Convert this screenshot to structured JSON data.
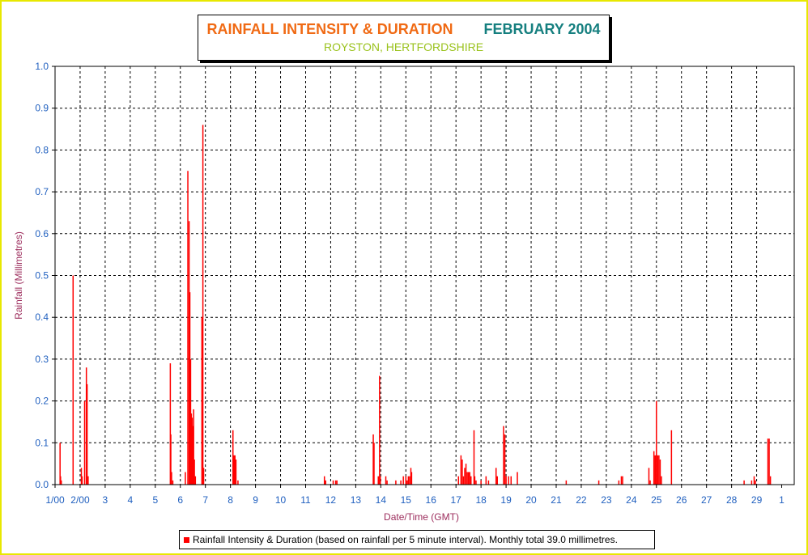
{
  "title": {
    "main": "RAINFALL INTENSITY & DURATION",
    "month": "FEBRUARY 2004",
    "subtitle": "ROYSTON, HERTFORDSHIRE"
  },
  "legend": {
    "label": "Rainfall Intensity & Duration (based on rainfall per 5 minute interval). Monthly total 39.0 millimetres."
  },
  "colors": {
    "series": "#ff0000",
    "tick_text": "#1f5fbf",
    "axis_title": "#9c2c5c",
    "title_orange": "#f06a14",
    "title_teal": "#157f7f",
    "subtitle": "#9ac21c",
    "border": "#e8e800"
  },
  "chart_data": {
    "type": "bar",
    "xlabel": "Date/Time (GMT)",
    "ylabel": "Rainfall (Millimetres)",
    "ylim": [
      0,
      1.0
    ],
    "xlim": [
      0,
      29.5
    ],
    "grid": "dashed",
    "y_ticks": [
      "0.0",
      "0.1",
      "0.2",
      "0.3",
      "0.4",
      "0.5",
      "0.6",
      "0.7",
      "0.8",
      "0.9",
      "1.0"
    ],
    "x_tick_labels": [
      "1/00",
      "2/00",
      "3",
      "4",
      "5",
      "6",
      "7",
      "8",
      "9",
      "10",
      "11",
      "12",
      "13",
      "14",
      "15",
      "16",
      "17",
      "18",
      "19",
      "20",
      "21",
      "22",
      "23",
      "24",
      "25",
      "26",
      "27",
      "28",
      "29",
      "1"
    ],
    "series": [
      {
        "points": [
          [
            0.2,
            0.1
          ],
          [
            0.22,
            0.02
          ],
          [
            0.25,
            0.01
          ],
          [
            0.72,
            0.5
          ],
          [
            1.05,
            0.04
          ],
          [
            1.08,
            0.02
          ],
          [
            1.18,
            0.2
          ],
          [
            1.25,
            0.28
          ],
          [
            1.28,
            0.24
          ],
          [
            1.32,
            0.02
          ],
          [
            4.6,
            0.29
          ],
          [
            4.62,
            0.12
          ],
          [
            4.65,
            0.03
          ],
          [
            4.7,
            0.01
          ],
          [
            5.2,
            0.03
          ],
          [
            5.3,
            0.75
          ],
          [
            5.35,
            0.63
          ],
          [
            5.38,
            0.46
          ],
          [
            5.41,
            0.3
          ],
          [
            5.44,
            0.17
          ],
          [
            5.47,
            0.16
          ],
          [
            5.5,
            0.14
          ],
          [
            5.53,
            0.18
          ],
          [
            5.56,
            0.06
          ],
          [
            5.6,
            0.02
          ],
          [
            5.86,
            0.4
          ],
          [
            5.9,
            0.86
          ],
          [
            5.93,
            0.04
          ],
          [
            7.1,
            0.13
          ],
          [
            7.14,
            0.07
          ],
          [
            7.18,
            0.07
          ],
          [
            7.22,
            0.06
          ],
          [
            7.3,
            0.01
          ],
          [
            10.75,
            0.02
          ],
          [
            10.8,
            0.01
          ],
          [
            11.1,
            0.01
          ],
          [
            11.2,
            0.01
          ],
          [
            11.25,
            0.01
          ],
          [
            12.7,
            0.12
          ],
          [
            12.73,
            0.1
          ],
          [
            12.9,
            0.02
          ],
          [
            12.95,
            0.26
          ],
          [
            12.98,
            0.02
          ],
          [
            13.2,
            0.02
          ],
          [
            13.25,
            0.01
          ],
          [
            13.6,
            0.01
          ],
          [
            13.8,
            0.01
          ],
          [
            13.9,
            0.02
          ],
          [
            14.0,
            0.02
          ],
          [
            14.05,
            0.01
          ],
          [
            14.1,
            0.02
          ],
          [
            14.15,
            0.02
          ],
          [
            14.2,
            0.04
          ],
          [
            14.23,
            0.03
          ],
          [
            16.1,
            0.02
          ],
          [
            16.2,
            0.07
          ],
          [
            16.25,
            0.06
          ],
          [
            16.3,
            0.02
          ],
          [
            16.35,
            0.04
          ],
          [
            16.4,
            0.05
          ],
          [
            16.45,
            0.03
          ],
          [
            16.5,
            0.03
          ],
          [
            16.55,
            0.03
          ],
          [
            16.6,
            0.02
          ],
          [
            16.72,
            0.13
          ],
          [
            16.75,
            0.02
          ],
          [
            16.8,
            0.01
          ],
          [
            17.0,
            0.01
          ],
          [
            17.2,
            0.02
          ],
          [
            17.3,
            0.01
          ],
          [
            17.6,
            0.04
          ],
          [
            17.65,
            0.02
          ],
          [
            17.9,
            0.14
          ],
          [
            17.95,
            0.12
          ],
          [
            18.0,
            0.02
          ],
          [
            18.1,
            0.02
          ],
          [
            18.2,
            0.02
          ],
          [
            18.45,
            0.03
          ],
          [
            20.4,
            0.01
          ],
          [
            21.7,
            0.01
          ],
          [
            22.5,
            0.01
          ],
          [
            22.6,
            0.02
          ],
          [
            22.65,
            0.02
          ],
          [
            23.7,
            0.04
          ],
          [
            23.75,
            0.01
          ],
          [
            23.9,
            0.08
          ],
          [
            23.95,
            0.07
          ],
          [
            24.0,
            0.2
          ],
          [
            24.05,
            0.07
          ],
          [
            24.1,
            0.07
          ],
          [
            24.15,
            0.06
          ],
          [
            24.2,
            0.02
          ],
          [
            24.6,
            0.13
          ],
          [
            27.5,
            0.01
          ],
          [
            27.8,
            0.01
          ],
          [
            27.9,
            0.02
          ],
          [
            27.95,
            0.01
          ],
          [
            28.45,
            0.11
          ],
          [
            28.5,
            0.11
          ],
          [
            28.55,
            0.02
          ]
        ]
      }
    ]
  }
}
